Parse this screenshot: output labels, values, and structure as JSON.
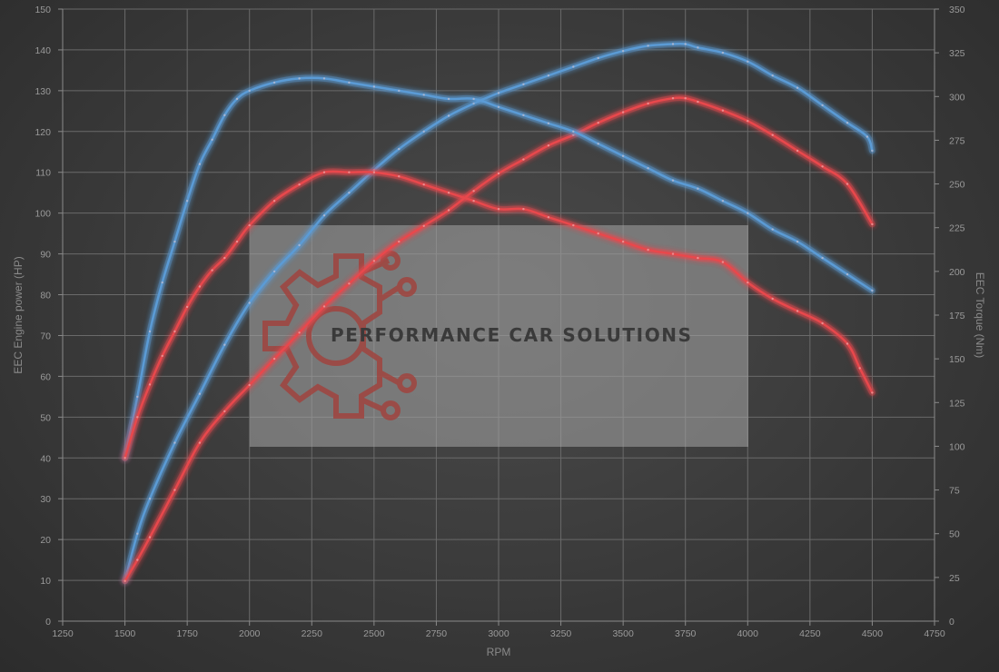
{
  "chart_data": {
    "type": "line",
    "xlabel": "RPM",
    "ylabel_left": "EEC Engine power (HP)",
    "ylabel_right": "EEC Torque (Nm)",
    "xlim": [
      1250,
      4750
    ],
    "ylim_left": [
      0,
      150
    ],
    "ylim_right": [
      0,
      350
    ],
    "x_ticks": [
      "1250",
      "1500",
      "1750",
      "2000",
      "2250",
      "2500",
      "2750",
      "3000",
      "3250",
      "3500",
      "3750",
      "4000",
      "4250",
      "4500",
      "4750"
    ],
    "y_left_ticks": [
      "0",
      "10",
      "20",
      "30",
      "40",
      "50",
      "60",
      "70",
      "80",
      "90",
      "100",
      "110",
      "120",
      "130",
      "140",
      "150"
    ],
    "y_right_ticks": [
      "0",
      "25",
      "50",
      "75",
      "100",
      "125",
      "150",
      "175",
      "200",
      "225",
      "250",
      "275",
      "300",
      "325",
      "350"
    ],
    "grid": true,
    "series": [
      {
        "name": "",
        "color": "#5b9bd5",
        "axis": "right",
        "x": [
          1500,
          1550,
          1600,
          1700,
          1800,
          1900,
          2000,
          2100,
          2200,
          2300,
          2400,
          2500,
          2600,
          2700,
          2800,
          2900,
          3000,
          3100,
          3200,
          3300,
          3400,
          3500,
          3600,
          3700,
          3750,
          3800,
          3900,
          4000,
          4100,
          4200,
          4300,
          4400,
          4480,
          4500
        ],
        "y": [
          23,
          50,
          70,
          102,
          130,
          158,
          182,
          200,
          215,
          232,
          245,
          258,
          270,
          280,
          289,
          296,
          302,
          307,
          312,
          317,
          322,
          326,
          329,
          330,
          330,
          328,
          325,
          320,
          312,
          305,
          295,
          285,
          277,
          269
        ]
      },
      {
        "name": "",
        "color": "#e8484c",
        "axis": "right",
        "x": [
          1500,
          1550,
          1600,
          1700,
          1800,
          1900,
          2000,
          2100,
          2200,
          2300,
          2400,
          2500,
          2600,
          2700,
          2800,
          2900,
          3000,
          3100,
          3200,
          3300,
          3400,
          3500,
          3600,
          3700,
          3750,
          3800,
          3900,
          4000,
          4100,
          4200,
          4300,
          4400,
          4500
        ],
        "y": [
          23,
          35,
          48,
          75,
          102,
          120,
          135,
          150,
          165,
          180,
          193,
          206,
          217,
          226,
          235,
          246,
          256,
          264,
          272,
          278,
          285,
          291,
          296,
          299,
          299,
          297,
          292,
          286,
          278,
          269,
          260,
          250,
          227
        ]
      },
      {
        "name": "",
        "color": "#5b9bd5",
        "axis": "left",
        "x": [
          1500,
          1550,
          1600,
          1650,
          1700,
          1750,
          1800,
          1850,
          1900,
          1950,
          2000,
          2100,
          2200,
          2300,
          2400,
          2500,
          2600,
          2700,
          2800,
          2900,
          3000,
          3100,
          3200,
          3300,
          3400,
          3500,
          3600,
          3700,
          3800,
          3900,
          4000,
          4100,
          4200,
          4300,
          4400,
          4500
        ],
        "y": [
          40,
          55,
          71,
          83,
          93,
          103,
          112,
          118,
          124,
          128,
          130,
          132,
          133,
          133,
          132,
          131,
          130,
          129,
          128,
          128,
          126,
          124,
          122,
          120,
          117,
          114,
          111,
          108,
          106,
          103,
          100,
          96,
          93,
          89,
          85,
          81
        ]
      },
      {
        "name": "",
        "color": "#e8484c",
        "axis": "left",
        "x": [
          1500,
          1550,
          1600,
          1650,
          1700,
          1750,
          1800,
          1850,
          1900,
          1950,
          2000,
          2100,
          2200,
          2300,
          2400,
          2500,
          2600,
          2700,
          2800,
          2900,
          3000,
          3100,
          3200,
          3300,
          3400,
          3500,
          3600,
          3700,
          3800,
          3900,
          4000,
          4100,
          4200,
          4300,
          4400,
          4450,
          4500
        ],
        "y": [
          40,
          50,
          58,
          65,
          71,
          77,
          82,
          86,
          89,
          93,
          97,
          103,
          107,
          110,
          110,
          110,
          109,
          107,
          105,
          103,
          101,
          101,
          99,
          97,
          95,
          93,
          91,
          90,
          89,
          88,
          83,
          79,
          76,
          73,
          68,
          62,
          56
        ]
      }
    ]
  },
  "watermark": {
    "text": "PERFORMANCE CAR SOLUTIONS",
    "text_color": "#3a3a3a",
    "box_color": "#a6a6a6",
    "logo_color": "#a0443f"
  }
}
